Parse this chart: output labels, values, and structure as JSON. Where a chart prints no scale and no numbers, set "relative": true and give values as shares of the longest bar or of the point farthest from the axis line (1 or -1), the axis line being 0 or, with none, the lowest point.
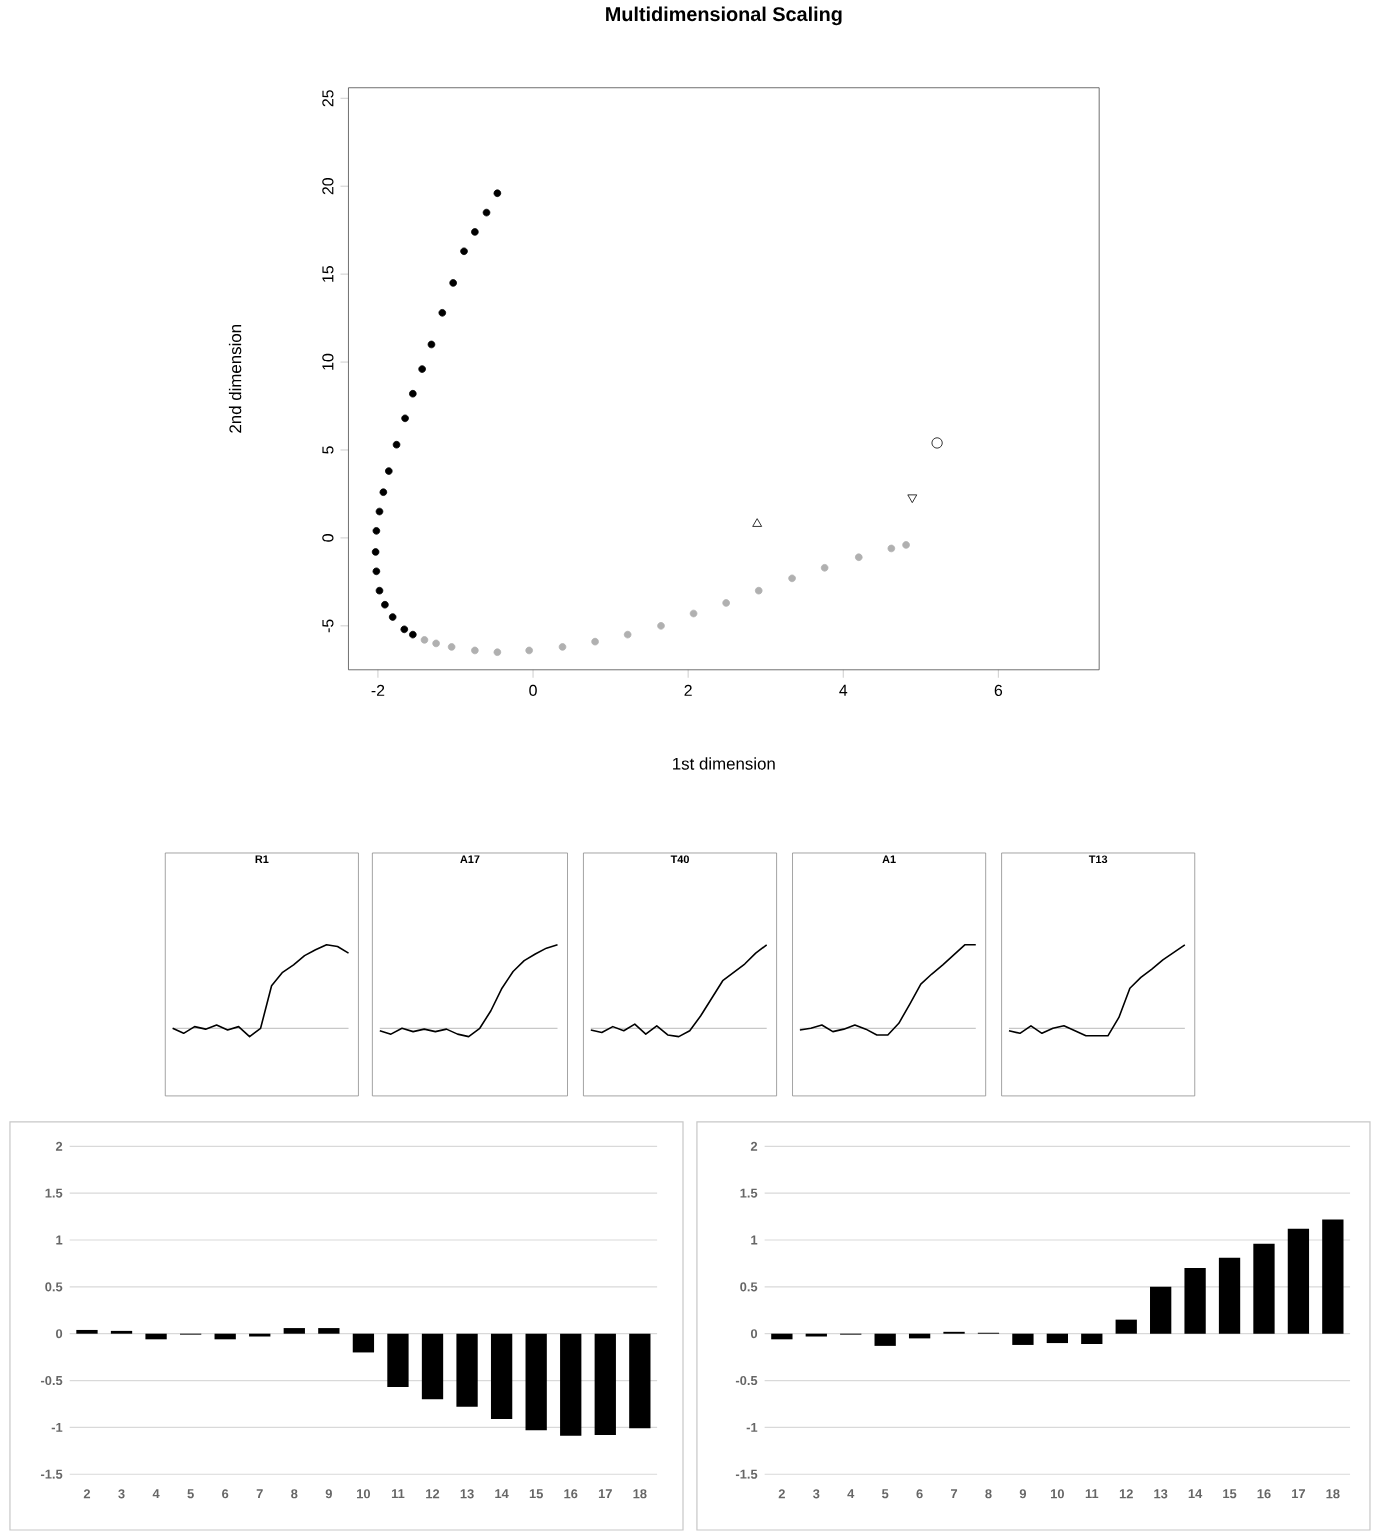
{
  "chart_data": [
    {
      "type": "scatter",
      "title": "Multidimensional Scaling",
      "xlabel": "1st dimension",
      "ylabel": "2nd dimension",
      "xlim": [
        -2.38,
        7.3
      ],
      "ylim": [
        -7.5,
        25.6
      ],
      "xticks": [
        -2,
        0,
        2,
        4,
        6
      ],
      "yticks": [
        -5,
        0,
        5,
        10,
        15,
        20,
        25
      ],
      "series": [
        {
          "color": "#000000",
          "marker": "circle",
          "x": [
            -0.46,
            -0.6,
            -0.75,
            -0.89,
            -1.03,
            -1.17,
            -1.31,
            -1.43,
            -1.55,
            -1.65,
            -1.76,
            -1.86,
            -1.93,
            -1.98,
            -2.02,
            -2.03,
            -2.02,
            -1.98,
            -1.91,
            -1.81,
            -1.66,
            -1.55
          ],
          "values": [
            19.6,
            18.5,
            17.4,
            16.3,
            14.5,
            12.8,
            11.0,
            9.6,
            8.2,
            6.8,
            5.3,
            3.8,
            2.6,
            1.5,
            0.4,
            -0.8,
            -1.9,
            -3.0,
            -3.8,
            -4.5,
            -5.2,
            -5.5
          ]
        },
        {
          "color": "#b0b0b0",
          "marker": "circle",
          "x": [
            -1.4,
            -1.25,
            -1.05,
            -0.75,
            -0.46,
            -0.05,
            0.38,
            0.8,
            1.22,
            1.65,
            2.07,
            2.49,
            2.91,
            3.34,
            3.76,
            4.2,
            4.62,
            4.81
          ],
          "values": [
            -5.8,
            -6.0,
            -6.2,
            -6.4,
            -6.5,
            -6.4,
            -6.2,
            -5.9,
            -5.5,
            -5.0,
            -4.3,
            -3.7,
            -3.0,
            -2.3,
            -1.7,
            -1.1,
            -0.6,
            -0.4
          ]
        },
        {
          "color": "#000000",
          "marker": "triangle",
          "x": [
            2.89
          ],
          "values": [
            0.8
          ]
        },
        {
          "color": "#000000",
          "marker": "triangle-down",
          "x": [
            4.89
          ],
          "values": [
            2.3
          ]
        },
        {
          "color": "#000000",
          "marker": "circle",
          "x": [
            5.21
          ],
          "values": [
            5.4
          ]
        }
      ]
    },
    {
      "type": "line",
      "title": "R1",
      "relative": true,
      "categories": [
        null,
        null,
        null,
        null,
        null,
        null,
        null,
        null,
        null,
        null,
        null,
        null,
        null,
        null,
        null,
        null,
        null
      ],
      "ref_lines": [
        {
          "axis": "y",
          "value": 0,
          "color": "#c8c8c8"
        }
      ],
      "series": [
        {
          "color": "#000000",
          "values": [
            0,
            -0.06,
            0.02,
            -0.01,
            0.04,
            -0.02,
            0.02,
            -0.1,
            0,
            0.51,
            0.67,
            0.76,
            0.87,
            0.94,
            1,
            0.98,
            0.9
          ]
        }
      ]
    },
    {
      "type": "line",
      "title": "A17",
      "relative": true,
      "categories": [
        null,
        null,
        null,
        null,
        null,
        null,
        null,
        null,
        null,
        null,
        null,
        null,
        null,
        null,
        null,
        null,
        null
      ],
      "ref_lines": [
        {
          "axis": "y",
          "value": 0,
          "color": "#c8c8c8"
        }
      ],
      "series": [
        {
          "color": "#000000",
          "values": [
            -0.03,
            -0.07,
            0,
            -0.04,
            -0.01,
            -0.04,
            -0.01,
            -0.07,
            -0.1,
            0,
            0.21,
            0.48,
            0.68,
            0.81,
            0.89,
            0.96,
            1
          ]
        }
      ]
    },
    {
      "type": "line",
      "title": "T40",
      "relative": true,
      "categories": [
        null,
        null,
        null,
        null,
        null,
        null,
        null,
        null,
        null,
        null,
        null,
        null,
        null,
        null,
        null,
        null,
        null
      ],
      "ref_lines": [
        {
          "axis": "y",
          "value": 0,
          "color": "#c8c8c8"
        }
      ],
      "series": [
        {
          "color": "#000000",
          "values": [
            -0.02,
            -0.05,
            0.02,
            -0.03,
            0.05,
            -0.07,
            0.03,
            -0.08,
            -0.1,
            -0.03,
            0.15,
            0.36,
            0.57,
            0.67,
            0.77,
            0.9,
            1
          ]
        }
      ]
    },
    {
      "type": "line",
      "title": "A1",
      "relative": true,
      "categories": [
        null,
        null,
        null,
        null,
        null,
        null,
        null,
        null,
        null,
        null,
        null,
        null,
        null,
        null,
        null,
        null,
        null
      ],
      "ref_lines": [
        {
          "axis": "y",
          "value": 0,
          "color": "#c8c8c8"
        }
      ],
      "series": [
        {
          "color": "#000000",
          "values": [
            -0.02,
            0,
            0.04,
            -0.04,
            -0.01,
            0.04,
            -0.01,
            -0.08,
            -0.08,
            0.06,
            0.29,
            0.53,
            0.65,
            0.76,
            0.88,
            1,
            1
          ]
        }
      ]
    },
    {
      "type": "line",
      "title": "T13",
      "relative": true,
      "categories": [
        null,
        null,
        null,
        null,
        null,
        null,
        null,
        null,
        null,
        null,
        null,
        null,
        null,
        null,
        null,
        null,
        null
      ],
      "ref_lines": [
        {
          "axis": "y",
          "value": 0,
          "color": "#c8c8c8"
        }
      ],
      "series": [
        {
          "color": "#000000",
          "values": [
            -0.03,
            -0.06,
            0.03,
            -0.06,
            0,
            0.03,
            -0.03,
            -0.09,
            -0.09,
            -0.09,
            0.13,
            0.48,
            0.61,
            0.71,
            0.82,
            0.91,
            1
          ]
        }
      ]
    },
    {
      "type": "bar",
      "categories": [
        "2",
        "3",
        "4",
        "5",
        "6",
        "7",
        "8",
        "9",
        "10",
        "11",
        "12",
        "13",
        "14",
        "15",
        "16",
        "17",
        "18"
      ],
      "values": [
        0.04,
        0.03,
        -0.06,
        -0.01,
        -0.06,
        -0.03,
        0.06,
        0.06,
        -0.2,
        -0.57,
        -0.7,
        -0.78,
        -0.91,
        -1.03,
        -1.09,
        -1.08,
        -1.01
      ],
      "color": "#000000",
      "ylim": [
        -1.5,
        2
      ],
      "yticks": [
        -1.5,
        -1,
        -0.5,
        0,
        0.5,
        1,
        1.5,
        2
      ],
      "grid": "y"
    },
    {
      "type": "bar",
      "categories": [
        "2",
        "3",
        "4",
        "5",
        "6",
        "7",
        "8",
        "9",
        "10",
        "11",
        "12",
        "13",
        "14",
        "15",
        "16",
        "17",
        "18"
      ],
      "values": [
        -0.06,
        -0.03,
        -0.01,
        -0.13,
        -0.05,
        0.02,
        0.01,
        -0.12,
        -0.1,
        -0.11,
        0.15,
        0.5,
        0.7,
        0.81,
        0.96,
        1.12,
        1.22
      ],
      "color": "#000000",
      "ylim": [
        -1.5,
        2
      ],
      "yticks": [
        -1.5,
        -1,
        -0.5,
        0,
        0.5,
        1,
        1.5,
        2
      ],
      "grid": "y"
    }
  ]
}
